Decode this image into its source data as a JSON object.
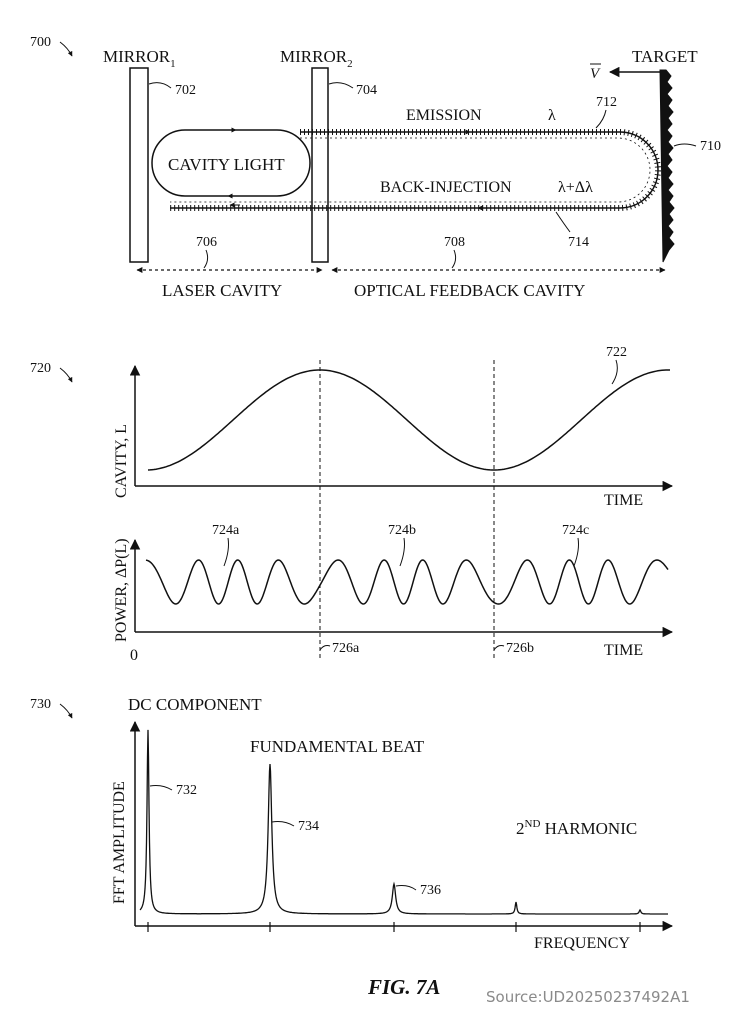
{
  "refs": {
    "r700": "700",
    "r702": "702",
    "r704": "704",
    "r706": "706",
    "r708": "708",
    "r710": "710",
    "r712": "712",
    "r714": "714",
    "r720": "720",
    "r722": "722",
    "r724a": "724a",
    "r724b": "724b",
    "r724c": "724c",
    "r726a": "726a",
    "r726b": "726b",
    "r730": "730",
    "r732": "732",
    "r734": "734",
    "r736": "736"
  },
  "top": {
    "mirror1_main": "MIRROR",
    "mirror1_sub": "1",
    "mirror2_main": "MIRROR",
    "mirror2_sub": "2",
    "target": "TARGET",
    "velocity": "V",
    "cavity_light": "CAVITY LIGHT",
    "emission": "EMISSION",
    "lambda": "λ",
    "back_injection": "BACK-INJECTION",
    "lambda_delta": "λ+Δλ",
    "laser_cavity": "LASER CAVITY",
    "optical_feedback_cavity": "OPTICAL FEEDBACK CAVITY"
  },
  "middle": {
    "cavity_ylabel": "CAVITY, L",
    "time1": "TIME",
    "power_ylabel": "POWER, ΔP(L)",
    "time2": "TIME",
    "zero": "0"
  },
  "bottom": {
    "dc_component": "DC COMPONENT",
    "fundamental_beat": "FUNDAMENTAL BEAT",
    "harmonic_main": "2",
    "harmonic_sup": "ND",
    "harmonic_rest": " HARMONIC",
    "fft_ylabel": "FFT AMPLITUDE",
    "frequency": "FREQUENCY"
  },
  "figure_label": "FIG. 7A",
  "source": "Source:UD20250237492A1"
}
